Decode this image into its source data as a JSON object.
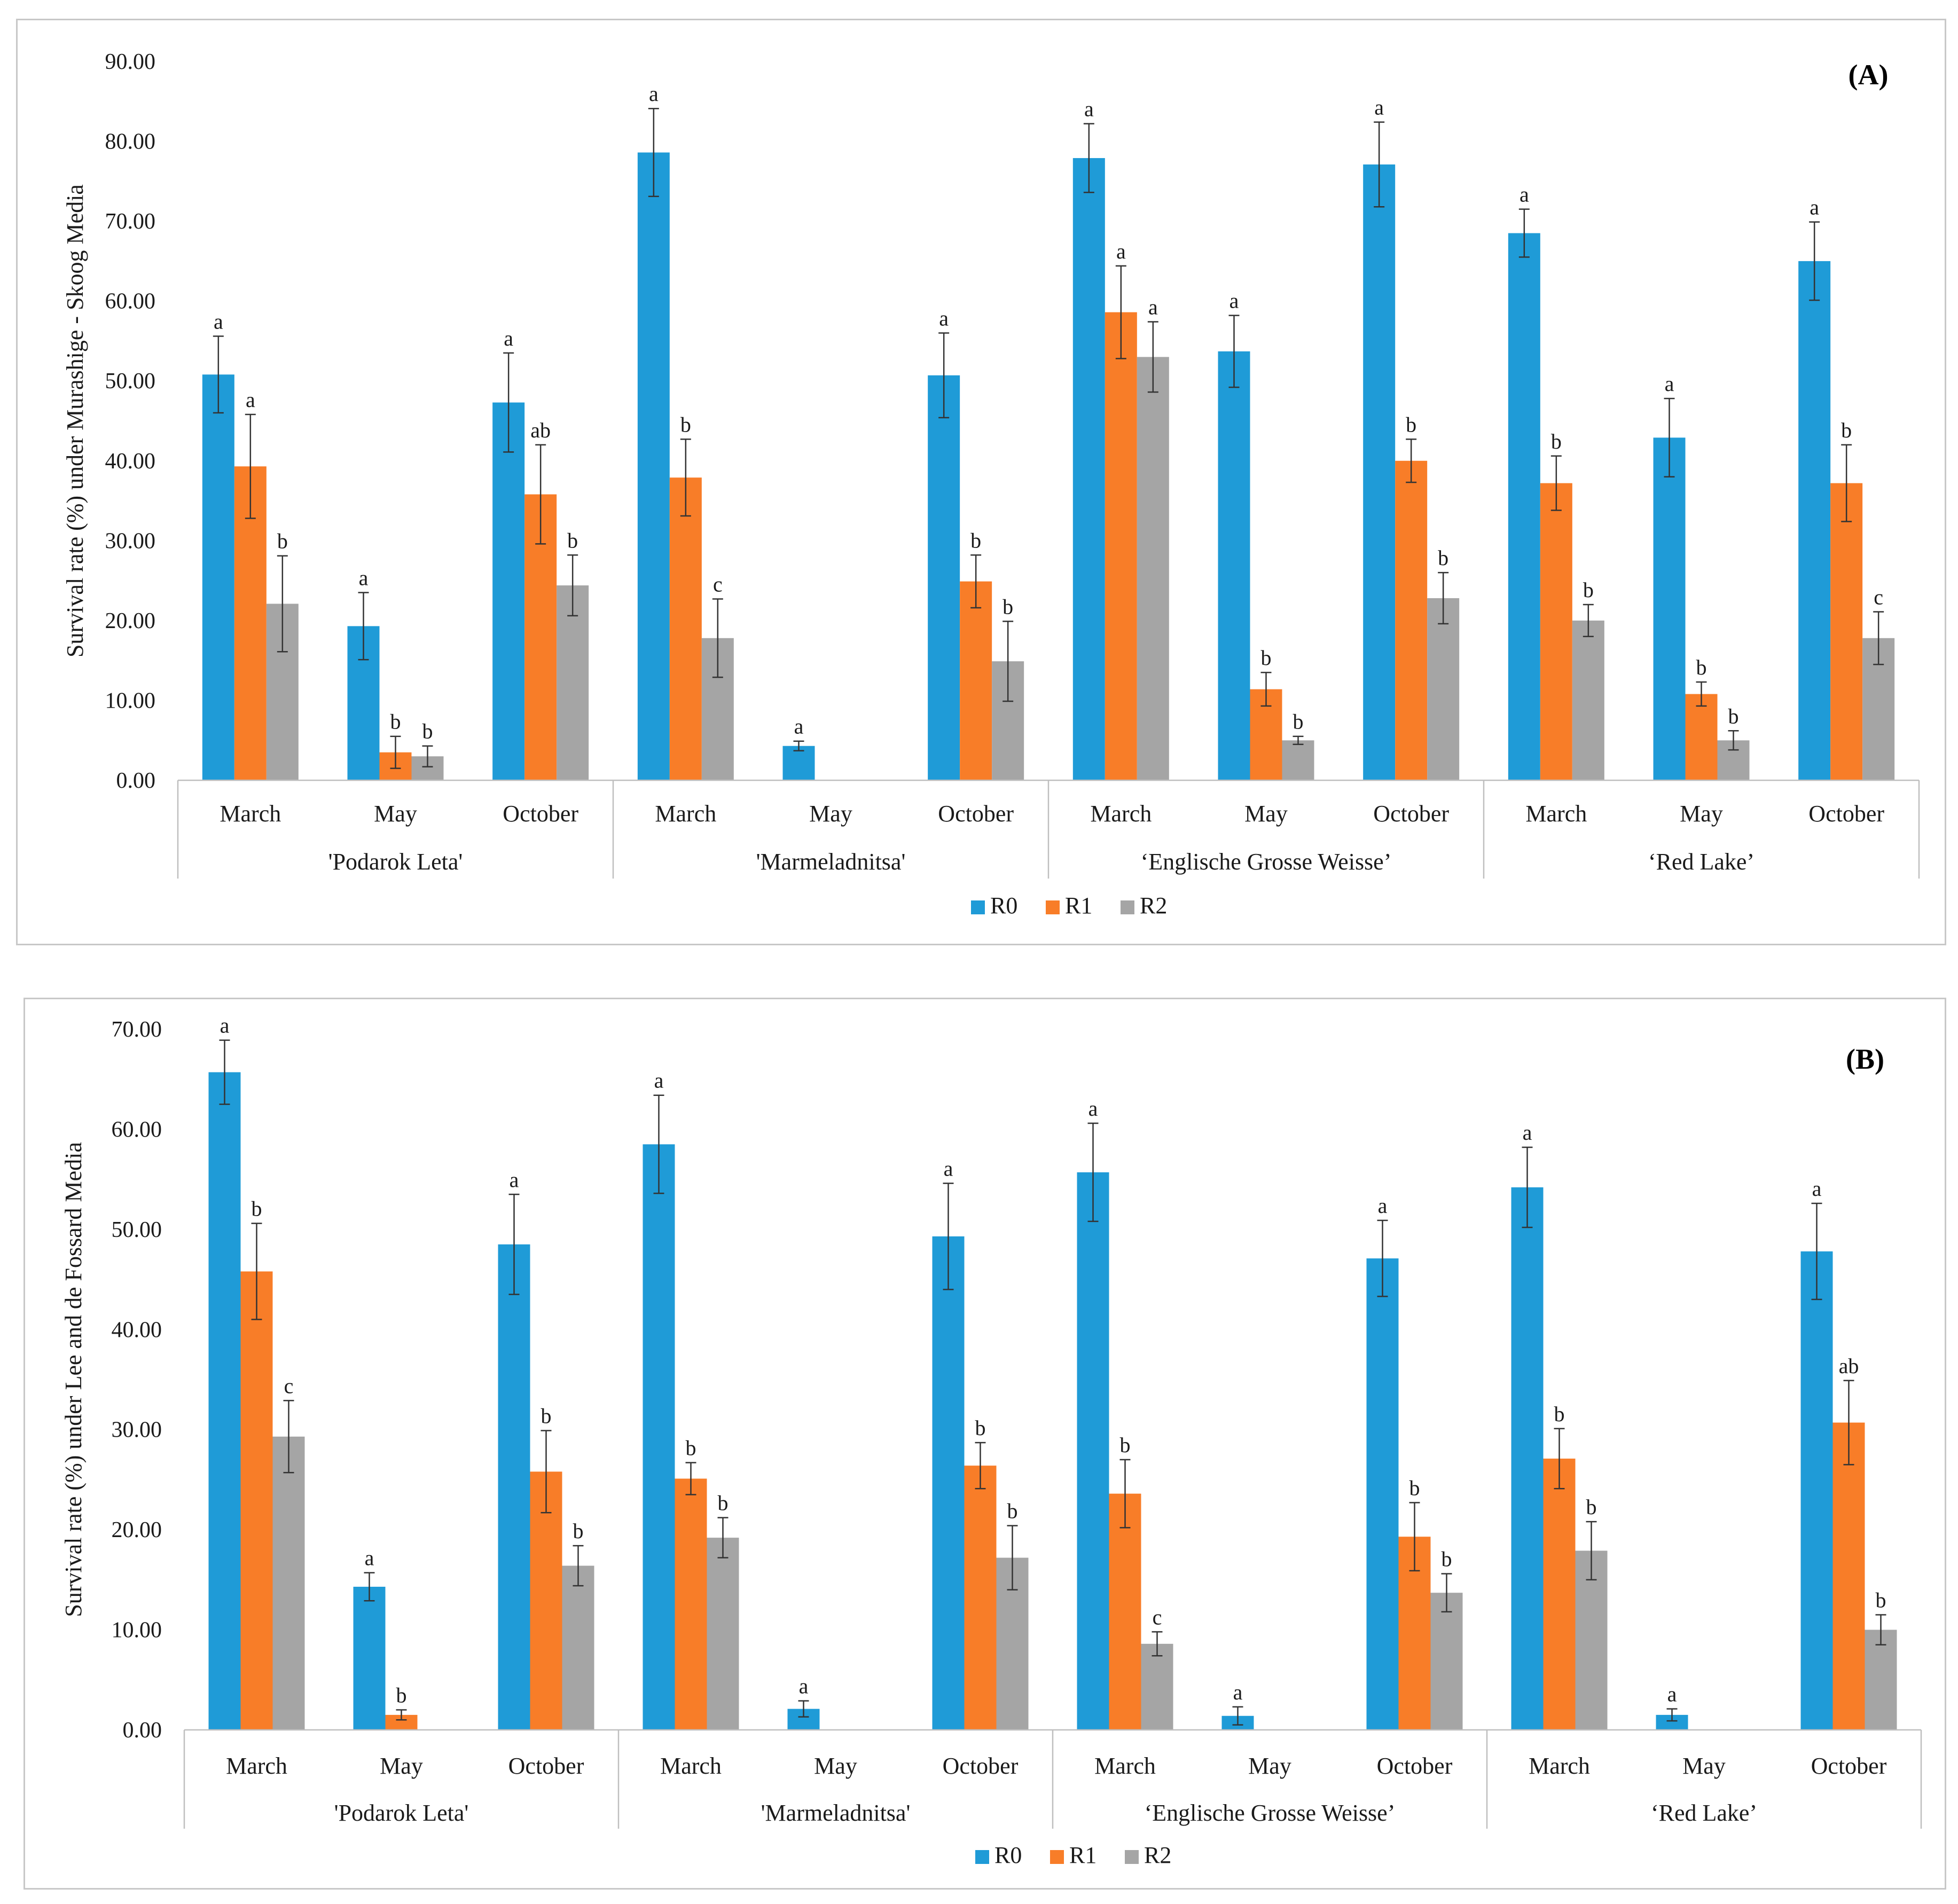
{
  "colors": {
    "R0": "#1f9bd7",
    "R1": "#f87d28",
    "R2": "#a5a5a5"
  },
  "chart_data": [
    {
      "type": "bar",
      "panel_label": "(A)",
      "ylabel": "Survival rate (%)  under Murashige - Skoog Media",
      "ylim": [
        0,
        90
      ],
      "yticks": [
        "0.00",
        "10.00",
        "20.00",
        "30.00",
        "40.00",
        "50.00",
        "60.00",
        "70.00",
        "80.00",
        "90.00"
      ],
      "groups": [
        "'Podarok Leta'",
        "'Marmeladnitsa'",
        "‘Englische Grosse Weisse’",
        "‘Red Lake’"
      ],
      "months": [
        "March",
        "May",
        "October"
      ],
      "legend": [
        "R0",
        "R1",
        "R2"
      ],
      "series": [
        {
          "name": "R0",
          "values": [
            50.8,
            19.3,
            47.3,
            78.6,
            4.3,
            50.7,
            77.9,
            53.7,
            77.1,
            68.5,
            42.9,
            65.0
          ],
          "errors": [
            4.8,
            4.2,
            6.2,
            5.5,
            0.6,
            5.3,
            4.3,
            4.5,
            5.3,
            3.0,
            4.9,
            4.9
          ],
          "letters": [
            "a",
            "a",
            "a",
            "a",
            "a",
            "a",
            "a",
            "a",
            "a",
            "a",
            "a",
            "a"
          ]
        },
        {
          "name": "R1",
          "values": [
            39.3,
            3.5,
            35.8,
            37.9,
            0,
            24.9,
            58.6,
            11.4,
            40.0,
            37.2,
            10.8,
            37.2
          ],
          "errors": [
            6.5,
            2.0,
            6.2,
            4.8,
            0,
            3.3,
            5.8,
            2.1,
            2.7,
            3.4,
            1.5,
            4.8
          ],
          "letters": [
            "a",
            "b",
            "ab",
            "b",
            "",
            "b",
            "a",
            "b",
            "b",
            "b",
            "b",
            "b"
          ]
        },
        {
          "name": "R2",
          "values": [
            22.1,
            3.0,
            24.4,
            17.8,
            0,
            14.9,
            53.0,
            5.0,
            22.8,
            20.0,
            5.0,
            17.8
          ],
          "errors": [
            6.0,
            1.3,
            3.8,
            4.9,
            0,
            5.0,
            4.4,
            0.5,
            3.2,
            2.0,
            1.2,
            3.3
          ],
          "letters": [
            "b",
            "b",
            "b",
            "c",
            "",
            "b",
            "a",
            "b",
            "b",
            "b",
            "b",
            "c"
          ]
        }
      ]
    },
    {
      "type": "bar",
      "panel_label": "(B)",
      "ylabel": "Survival rate (%)  under Lee and de Fossard Media",
      "ylim": [
        0,
        70
      ],
      "yticks": [
        "0.00",
        "10.00",
        "20.00",
        "30.00",
        "40.00",
        "50.00",
        "60.00",
        "70.00"
      ],
      "groups": [
        "'Podarok Leta'",
        "'Marmeladnitsa'",
        "‘Englische Grosse Weisse’",
        "‘Red Lake’"
      ],
      "months": [
        "March",
        "May",
        "October"
      ],
      "legend": [
        "R0",
        "R1",
        "R2"
      ],
      "series": [
        {
          "name": "R0",
          "values": [
            65.7,
            14.3,
            48.5,
            58.5,
            2.1,
            49.3,
            55.7,
            1.4,
            47.1,
            54.2,
            1.5,
            47.8
          ],
          "errors": [
            3.2,
            1.4,
            5.0,
            4.9,
            0.8,
            5.3,
            4.9,
            0.9,
            3.8,
            4.0,
            0.6,
            4.8
          ],
          "letters": [
            "a",
            "a",
            "a",
            "a",
            "a",
            "a",
            "a",
            "a",
            "a",
            "a",
            "a",
            "a"
          ]
        },
        {
          "name": "R1",
          "values": [
            45.8,
            1.5,
            25.8,
            25.1,
            0,
            26.4,
            23.6,
            0,
            19.3,
            27.1,
            0,
            30.7
          ],
          "errors": [
            4.8,
            0.5,
            4.1,
            1.6,
            0,
            2.3,
            3.4,
            0,
            3.4,
            3.0,
            0,
            4.2
          ],
          "letters": [
            "b",
            "b",
            "b",
            "b",
            "",
            "b",
            "b",
            "",
            "b",
            "b",
            "",
            "ab"
          ]
        },
        {
          "name": "R2",
          "values": [
            29.3,
            0,
            16.4,
            19.2,
            0,
            17.2,
            8.6,
            0,
            13.7,
            17.9,
            0,
            10.0
          ],
          "errors": [
            3.6,
            0,
            2.0,
            2.0,
            0,
            3.2,
            1.2,
            0,
            1.9,
            2.9,
            0,
            1.5
          ],
          "letters": [
            "c",
            "",
            "b",
            "b",
            "",
            "b",
            "c",
            "",
            "b",
            "b",
            "",
            "b"
          ]
        }
      ]
    }
  ]
}
